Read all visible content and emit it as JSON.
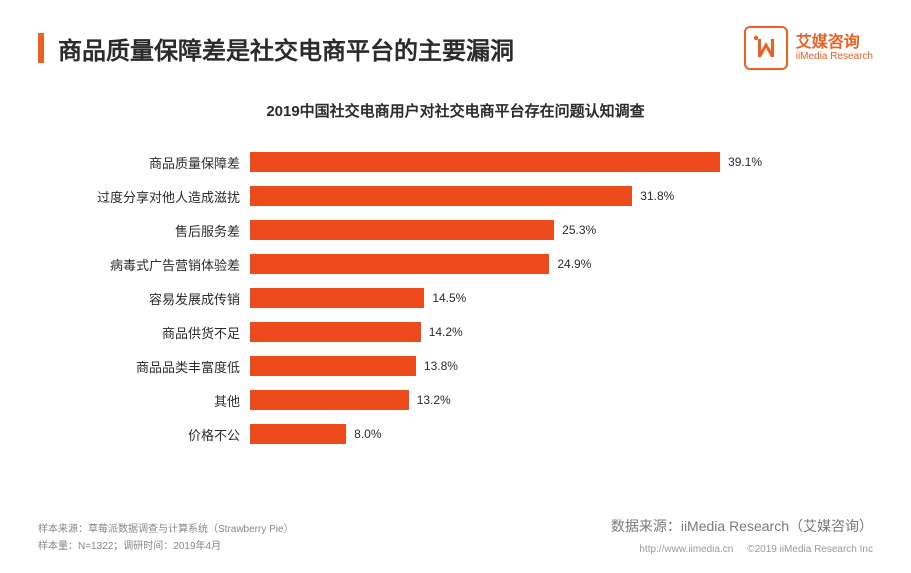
{
  "header": {
    "title": "商品质量保障差是社交电商平台的主要漏洞",
    "logo_cn": "艾媒咨询",
    "logo_en": "iiMedia Research"
  },
  "chart": {
    "type": "bar-horizontal",
    "title": "2019中国社交电商用户对社交电商平台存在问题认知调查",
    "bar_color": "#ed4b1c",
    "label_fontsize": 13,
    "value_fontsize": 12,
    "xmax_percent": 45,
    "background_color": "#ffffff",
    "items": [
      {
        "label": "商品质量保障差",
        "value": 39.1,
        "display": "39.1%"
      },
      {
        "label": "过度分享对他人造成滋扰",
        "value": 31.8,
        "display": "31.8%"
      },
      {
        "label": "售后服务差",
        "value": 25.3,
        "display": "25.3%"
      },
      {
        "label": "病毒式广告营销体验差",
        "value": 24.9,
        "display": "24.9%"
      },
      {
        "label": "容易发展成传销",
        "value": 14.5,
        "display": "14.5%"
      },
      {
        "label": "商品供货不足",
        "value": 14.2,
        "display": "14.2%"
      },
      {
        "label": "商品品类丰富度低",
        "value": 13.8,
        "display": "13.8%"
      },
      {
        "label": "其他",
        "value": 13.2,
        "display": "13.2%"
      },
      {
        "label": "价格不公",
        "value": 8.0,
        "display": "8.0%"
      }
    ]
  },
  "footer": {
    "sample_source": "样本来源：草莓派数据调查与计算系统（Strawberry Pie）",
    "sample_size": "样本量：N=1322；调研时间：2019年4月",
    "data_source": "数据来源：iiMedia Research（艾媒咨询）",
    "website": "http://www.iimedia.cn",
    "copyright": "©2019  iiMedia Research  Inc"
  },
  "colors": {
    "accent": "#ed6023",
    "bar": "#ed4b1c",
    "text_primary": "#2b2b2b",
    "text_muted": "#878787"
  }
}
